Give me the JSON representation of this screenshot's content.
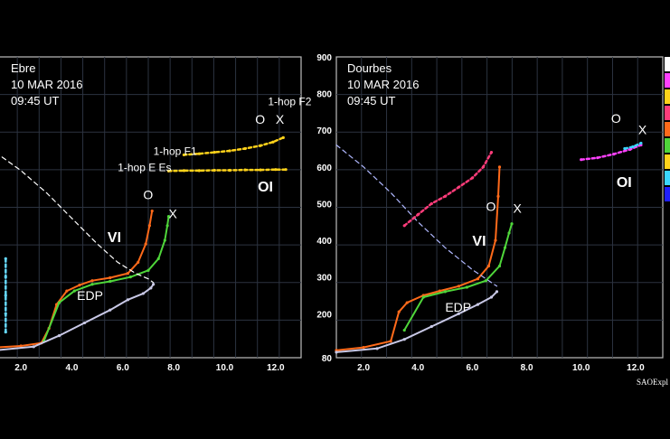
{
  "chart_data": [
    {
      "type": "scatter",
      "panel": "left",
      "station": "Ebre",
      "date": "10 MAR 2016",
      "time": "09:45 UT",
      "xlim": [
        1.0,
        13.0
      ],
      "ylim": [
        80,
        900
      ],
      "x_ticks": [
        "2.0",
        "4.0",
        "6.0",
        "8.0",
        "10.0",
        "12.0"
      ],
      "annotations": [
        {
          "text": "1-hop F2",
          "x": 11.7,
          "y": 768,
          "color": "#ffffff"
        },
        {
          "text": "O",
          "x": 11.2,
          "y": 718,
          "color": "#ffffff"
        },
        {
          "text": "X",
          "x": 12.0,
          "y": 718,
          "color": "#ffffff"
        },
        {
          "text": "1-hop F1",
          "x": 7.2,
          "y": 633,
          "color": "#ffffff"
        },
        {
          "text": "1-hop E Es",
          "x": 5.8,
          "y": 589,
          "color": "#ffffff"
        },
        {
          "text": "OI",
          "x": 11.3,
          "y": 533,
          "color": "#b07a3a"
        },
        {
          "text": "O",
          "x": 6.8,
          "y": 512,
          "color": "#ffffff"
        },
        {
          "text": "X",
          "x": 7.8,
          "y": 460,
          "color": "#ffffff"
        },
        {
          "text": "VI",
          "x": 5.4,
          "y": 395,
          "color": "#b07a3a"
        },
        {
          "text": "EDP",
          "x": 4.2,
          "y": 238,
          "color": "#ffffff"
        }
      ],
      "series": [
        {
          "role": "O-trace",
          "color": "#ff6a1a",
          "x": [
            1.0,
            2.0,
            2.8,
            3.1,
            3.4,
            3.8,
            4.3,
            4.8,
            5.5,
            6.2,
            6.6,
            6.9,
            7.05,
            7.15
          ],
          "y": [
            108,
            112,
            120,
            160,
            225,
            262,
            278,
            290,
            298,
            310,
            340,
            390,
            440,
            480
          ]
        },
        {
          "role": "X-trace",
          "color": "#4fd63a",
          "x": [
            2.9,
            3.5,
            4.1,
            4.8,
            5.5,
            6.3,
            7.0,
            7.4,
            7.65,
            7.75,
            7.8
          ],
          "y": [
            125,
            230,
            262,
            280,
            288,
            300,
            318,
            350,
            400,
            440,
            465
          ]
        },
        {
          "role": "EDP",
          "color": "#c8c8e6",
          "x": [
            1.0,
            2.5,
            3.5,
            4.5,
            5.5,
            6.2,
            6.8,
            7.1,
            7.2
          ],
          "y": [
            100,
            110,
            140,
            175,
            210,
            238,
            255,
            270,
            280
          ]
        },
        {
          "role": "model-dashed",
          "color": "#ffffff",
          "x": [
            1.0,
            2.0,
            3.0,
            4.0,
            5.0,
            5.8,
            6.5,
            7.0,
            7.2
          ],
          "y": [
            640,
            590,
            530,
            460,
            390,
            340,
            310,
            295,
            285
          ]
        },
        {
          "role": "1-hop F2",
          "color": "#ffd21a",
          "x": [
            8.4,
            9.0,
            9.6,
            10.2,
            10.8,
            11.4,
            11.9,
            12.3
          ],
          "y": [
            633,
            636,
            640,
            644,
            650,
            658,
            668,
            680
          ]
        },
        {
          "role": "1-hop E Es",
          "color": "#ffd21a",
          "x": [
            7.8,
            8.4,
            9.0,
            9.6,
            10.2,
            10.8,
            11.4,
            12.0,
            12.4
          ],
          "y": [
            589,
            590,
            590,
            591,
            591,
            592,
            592,
            593,
            593
          ]
        },
        {
          "role": "Es-left",
          "color": "#66d9ff",
          "x": [
            1.4,
            1.4,
            1.4,
            1.4,
            1.4
          ],
          "y": [
            150,
            200,
            250,
            300,
            350
          ]
        }
      ]
    },
    {
      "type": "scatter",
      "panel": "right",
      "station": "Dourbes",
      "date": "10 MAR 2016",
      "time": "09:45 UT",
      "xlim": [
        1.0,
        13.0
      ],
      "ylim": [
        80,
        900
      ],
      "x_ticks": [
        "2.0",
        "4.0",
        "6.0",
        "8.0",
        "10.0",
        "12.0"
      ],
      "y_ticks": [
        "80",
        "200",
        "300",
        "400",
        "500",
        "600",
        "700",
        "800",
        "900"
      ],
      "annotations": [
        {
          "text": "O",
          "x": 11.1,
          "y": 720,
          "color": "#ffffff"
        },
        {
          "text": "X",
          "x": 12.1,
          "y": 690,
          "color": "#ffffff"
        },
        {
          "text": "OI",
          "x": 11.3,
          "y": 545,
          "color": "#b07a3a"
        },
        {
          "text": "O",
          "x": 6.5,
          "y": 480,
          "color": "#ffffff"
        },
        {
          "text": "X",
          "x": 7.5,
          "y": 475,
          "color": "#ffffff"
        },
        {
          "text": "VI",
          "x": 6.0,
          "y": 385,
          "color": "#b07a3a"
        },
        {
          "text": "EDP",
          "x": 5.0,
          "y": 205,
          "color": "#ffffff"
        }
      ],
      "series": [
        {
          "role": "O-trace",
          "color": "#ff6a1a",
          "x": [
            1.0,
            2.0,
            3.0,
            3.3,
            3.6,
            4.2,
            4.8,
            5.5,
            6.2,
            6.6,
            6.85,
            6.95,
            7.0
          ],
          "y": [
            100,
            108,
            125,
            205,
            230,
            250,
            262,
            275,
            295,
            330,
            400,
            520,
            600
          ]
        },
        {
          "role": "X-trace",
          "color": "#4fd63a",
          "x": [
            3.5,
            4.2,
            5.0,
            5.8,
            6.5,
            7.0,
            7.2,
            7.35,
            7.45
          ],
          "y": [
            155,
            245,
            260,
            272,
            290,
            330,
            380,
            420,
            445
          ]
        },
        {
          "role": "EDP",
          "color": "#c8c8e6",
          "x": [
            1.0,
            2.5,
            3.5,
            4.5,
            5.5,
            6.2,
            6.7,
            6.9
          ],
          "y": [
            95,
            105,
            130,
            165,
            200,
            225,
            245,
            260
          ]
        },
        {
          "role": "model-dashed",
          "color": "#b0b8ff",
          "x": [
            1.0,
            2.0,
            3.0,
            4.0,
            5.0,
            6.0,
            6.7,
            6.9
          ],
          "y": [
            660,
            600,
            530,
            450,
            380,
            320,
            285,
            275
          ]
        },
        {
          "role": "spread-F",
          "color": "#ff3c7a",
          "x": [
            3.5,
            4.0,
            4.5,
            5.0,
            5.5,
            6.0,
            6.4,
            6.7
          ],
          "y": [
            440,
            470,
            500,
            520,
            545,
            570,
            600,
            640
          ]
        },
        {
          "role": "1-hop F2",
          "color": "#ff40ff",
          "x": [
            10.0,
            10.6,
            11.2,
            11.8,
            12.2
          ],
          "y": [
            620,
            625,
            635,
            648,
            660
          ]
        },
        {
          "role": "1-hop F2-X",
          "color": "#3ad6ff",
          "x": [
            11.6,
            11.9,
            12.2
          ],
          "y": [
            650,
            655,
            665
          ]
        }
      ]
    }
  ],
  "legend_colors": [
    "#ffffff",
    "#ff40ff",
    "#ffd21a",
    "#ff3c7a",
    "#ff6a1a",
    "#4fd63a",
    "#ffd21a",
    "#3ad6ff",
    "#2020ff"
  ],
  "footer": "SAOExpl"
}
